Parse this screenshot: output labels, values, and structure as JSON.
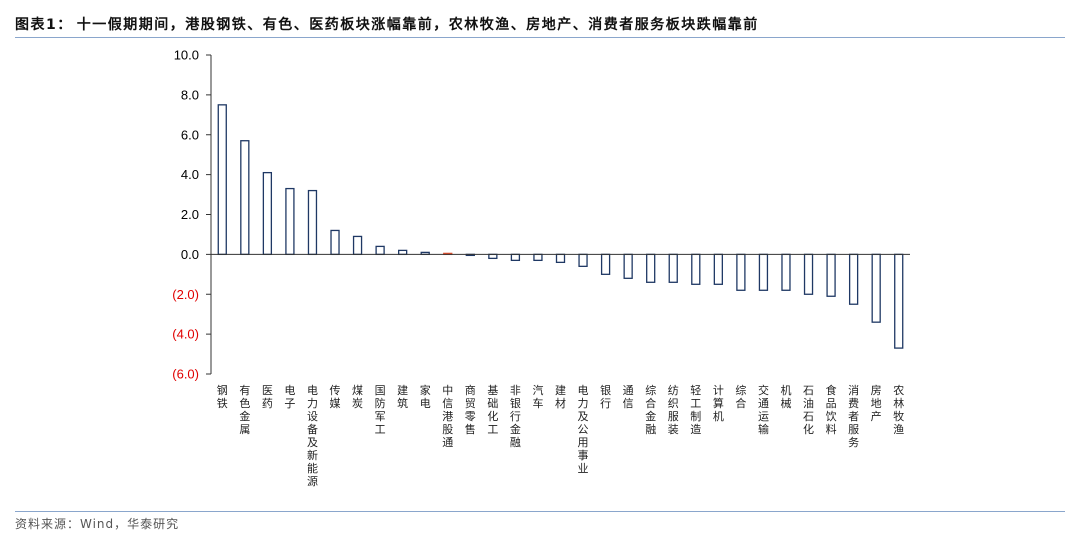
{
  "header": {
    "figure_label": "图表1："
  },
  "footer": {
    "source": "资料来源：Wind，华泰研究"
  },
  "colors": {
    "bar_outline": "#1f3864",
    "bar_fill": "#ffffff",
    "highlight": "#e2502e",
    "axis": "#333333",
    "positive_label": "#000000",
    "negative_label": "#e00000",
    "rule": "#8aa6cc"
  },
  "chart_data": {
    "type": "bar",
    "title": "十一假期期间，港股钢铁、有色、医药板块涨幅靠前，农林牧渔、房地产、消费者服务板块跌幅靠前",
    "ylim": [
      -6,
      10
    ],
    "yticks": [
      10,
      8,
      6,
      4,
      2,
      0,
      -2,
      -4,
      -6
    ],
    "ytick_labels": [
      "10.0",
      "8.0",
      "6.0",
      "4.0",
      "2.0",
      "0.0",
      "(2.0)",
      "(4.0)",
      "(6.0)"
    ],
    "grid": false,
    "categories": [
      "钢铁",
      "有色金属",
      "医药",
      "电子",
      "电力设备及新能源",
      "传媒",
      "煤炭",
      "国防军工",
      "建筑",
      "家电",
      "中信港股通",
      "商贸零售",
      "基础化工",
      "非银行金融",
      "汽车",
      "建材",
      "电力及公用事业",
      "银行",
      "通信",
      "综合金融",
      "纺织服装",
      "轻工制造",
      "计算机",
      "综合",
      "交通运输",
      "机械",
      "石油石化",
      "食品饮料",
      "消费者服务",
      "房地产",
      "农林牧渔"
    ],
    "values": [
      7.5,
      5.7,
      4.1,
      3.3,
      3.2,
      1.2,
      0.9,
      0.4,
      0.2,
      0.1,
      0.05,
      -0.05,
      -0.2,
      -0.3,
      -0.3,
      -0.4,
      -0.6,
      -1.0,
      -1.2,
      -1.4,
      -1.4,
      -1.5,
      -1.5,
      -1.8,
      -1.8,
      -1.8,
      -2.0,
      -2.1,
      -2.5,
      -3.4,
      -4.7
    ],
    "highlight_index": 10
  }
}
